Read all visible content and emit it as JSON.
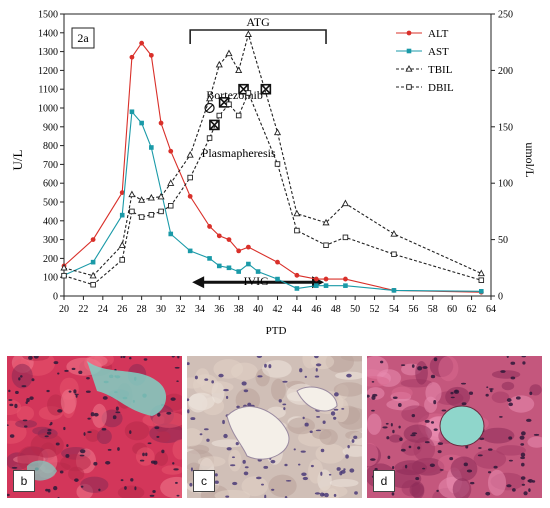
{
  "chart_data": {
    "type": "line",
    "panel_label": "2a",
    "xlabel": "PTD",
    "ylabel_left": "U/L",
    "ylabel_right": "umol/L",
    "xlim": [
      20,
      64
    ],
    "xticks": [
      20,
      22,
      24,
      26,
      28,
      30,
      32,
      34,
      36,
      38,
      40,
      42,
      44,
      46,
      48,
      50,
      52,
      54,
      56,
      58,
      60,
      62,
      64
    ],
    "ylim_left": [
      0,
      1500
    ],
    "yticks_left": [
      0,
      100,
      200,
      300,
      400,
      500,
      600,
      700,
      800,
      900,
      1000,
      1100,
      1200,
      1300,
      1400,
      1500
    ],
    "ylim_right": [
      0,
      250
    ],
    "yticks_right": [
      0,
      50,
      100,
      150,
      200,
      250
    ],
    "series": [
      {
        "name": "ALT",
        "axis": "left",
        "color": "#d9302a",
        "marker": "circle",
        "dash": false,
        "x": [
          20,
          23,
          26,
          27,
          28,
          29,
          30,
          31,
          33,
          35,
          36,
          37,
          38,
          39,
          42,
          44,
          46,
          47,
          49,
          54,
          63
        ],
        "y": [
          160,
          300,
          550,
          1270,
          1345,
          1280,
          920,
          770,
          530,
          370,
          320,
          300,
          240,
          260,
          180,
          110,
          90,
          90,
          90,
          30,
          20
        ]
      },
      {
        "name": "AST",
        "axis": "left",
        "color": "#1a9aa8",
        "marker": "square",
        "dash": false,
        "x": [
          20,
          23,
          26,
          27,
          28,
          29,
          31,
          33,
          35,
          36,
          37,
          38,
          39,
          40,
          42,
          44,
          46,
          47,
          49,
          54,
          63
        ],
        "y": [
          110,
          180,
          430,
          980,
          920,
          790,
          330,
          240,
          200,
          160,
          150,
          130,
          170,
          130,
          90,
          40,
          55,
          55,
          55,
          30,
          25
        ]
      },
      {
        "name": "TBIL",
        "axis": "right",
        "color": "#222222",
        "marker": "triangle",
        "dash": true,
        "x": [
          20,
          23,
          26,
          27,
          28,
          29,
          30,
          31,
          33,
          35,
          36,
          37,
          38,
          39,
          42,
          44,
          47,
          49,
          54,
          63
        ],
        "y": [
          25,
          18,
          45,
          90,
          85,
          87,
          88,
          100,
          125,
          175,
          205,
          215,
          200,
          232,
          145,
          73,
          65,
          82,
          55,
          20
        ]
      },
      {
        "name": "DBIL",
        "axis": "right",
        "color": "#222222",
        "marker": "square-open",
        "dash": true,
        "x": [
          20,
          23,
          26,
          27,
          28,
          29,
          30,
          31,
          33,
          35,
          36,
          37,
          38,
          39,
          42,
          44,
          47,
          49,
          54,
          63
        ],
        "y": [
          18,
          10,
          32,
          75,
          70,
          72,
          75,
          80,
          105,
          140,
          160,
          170,
          160,
          180,
          117,
          58,
          45,
          52,
          37,
          14
        ]
      }
    ],
    "annotations": {
      "atg_label": "ATG",
      "atg_range": [
        33,
        47
      ],
      "ivig_label": "IVIG",
      "ivig_range": [
        33,
        47
      ],
      "bortezomib_label": "Bortezomib",
      "bortezomib_x": 35,
      "plasmapheresis_label": "Plasmapheresis",
      "plasmapheresis_marks": [
        {
          "x": 35.5,
          "y": 910
        },
        {
          "x": 36.5,
          "y": 1030
        },
        {
          "x": 38.5,
          "y": 1100
        },
        {
          "x": 40.8,
          "y": 1100
        }
      ]
    }
  },
  "panels": [
    {
      "label": "b",
      "color": "#d3365a"
    },
    {
      "label": "c",
      "color": "#d0bfb7"
    },
    {
      "label": "d",
      "color": "#c4577d"
    }
  ]
}
